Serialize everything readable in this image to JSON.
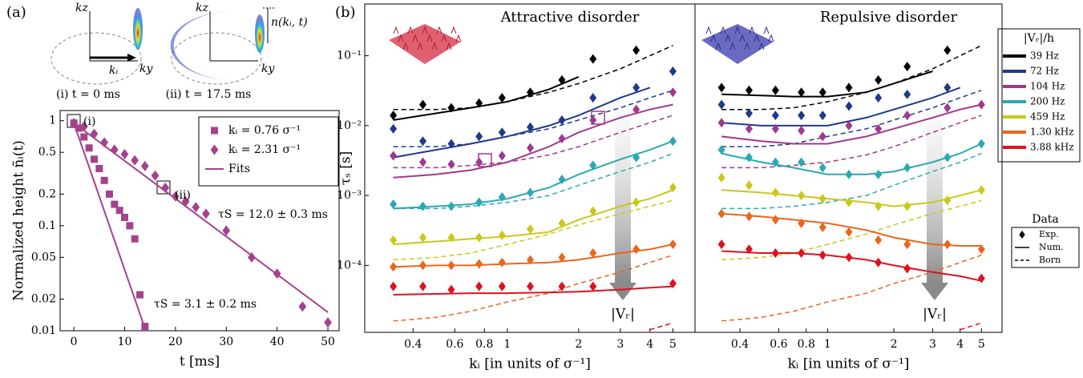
{
  "chart_data": [
    {
      "type": "line",
      "panel_label": "(a)",
      "log_y": true,
      "xlabel": "t [ms]",
      "ylabel": "Normalized height ñᵢ(t)",
      "xlim": [
        -2.7,
        52.2
      ],
      "xticks": [
        0,
        10,
        20,
        30,
        40,
        50
      ],
      "ylim": [
        0.01,
        1.25
      ],
      "yticks": [
        1,
        0.5,
        0.2,
        0.1,
        0.05,
        0.02,
        0.01
      ],
      "series": [
        {
          "name": "kᵢ = 0.76 σ⁻¹",
          "color": "#a4428e",
          "marker": "square",
          "x": [
            0,
            1,
            2,
            3,
            4,
            5,
            6,
            7,
            8,
            9,
            10,
            11,
            12,
            13,
            14
          ],
          "values": [
            0.95,
            0.85,
            0.7,
            0.55,
            0.43,
            0.35,
            0.27,
            0.2,
            0.16,
            0.14,
            0.12,
            0.1,
            0.075,
            0.022,
            0.011
          ]
        },
        {
          "name": "kᵢ = 2.31 σ⁻¹",
          "color": "#a4428e",
          "marker": "diamond",
          "x": [
            0,
            2,
            4,
            6,
            8,
            10,
            12,
            14,
            16,
            18,
            20,
            22,
            24,
            26,
            30,
            35,
            40,
            45,
            50
          ],
          "values": [
            0.95,
            0.88,
            0.75,
            0.62,
            0.53,
            0.48,
            0.42,
            0.37,
            0.3,
            0.23,
            0.19,
            0.17,
            0.15,
            0.13,
            0.09,
            0.05,
            0.035,
            0.017,
            0.012
          ]
        }
      ],
      "fits": {
        "name": "Fits",
        "color": "#a4428e",
        "lines": [
          {
            "x": [
              0,
              14
            ],
            "values": [
              0.95,
              0.0105
            ]
          },
          {
            "x": [
              0,
              50
            ],
            "values": [
              0.95,
              0.015
            ]
          }
        ]
      },
      "annotations": [
        "(i)",
        "(ii)",
        "τS = 12.0 ± 0.3 ms",
        "τS = 3.1 ± 0.2 ms"
      ],
      "insets": [
        {
          "caption": "(i) t = 0 ms",
          "axis_labels": [
            "kz",
            "ky",
            "kᵢ"
          ]
        },
        {
          "caption": "(ii) t = 17.5 ms",
          "axis_labels": [
            "kz",
            "ky",
            "n(kᵢ, t)"
          ]
        }
      ]
    },
    {
      "type": "line",
      "panel_label": "(b)",
      "log_x": true,
      "log_y": true,
      "title": "Attractive disorder",
      "title_color": "#e8141e",
      "xlabel": "kᵢ [in units of σ⁻¹]",
      "ylabel": "τₛ [s]",
      "xlim": [
        0.25,
        6.2
      ],
      "xticks": [
        0.4,
        0.6,
        0.8,
        1,
        2,
        3,
        4,
        5
      ],
      "ylim": [
        1.1e-05,
        0.55
      ],
      "yticks": [
        {
          "value": 0.1,
          "label": "10⁻¹"
        },
        {
          "value": 0.01,
          "label": "10⁻²"
        },
        {
          "value": 0.001,
          "label": "10⁻³"
        },
        {
          "value": 0.0001,
          "label": "10⁻⁴"
        }
      ],
      "arrow_label": "|Vᵣ|",
      "legend_title": "|Vᵣ|/h",
      "data_legend": {
        "title": "Data",
        "entries": [
          "Exp.",
          "Num.",
          "Born"
        ]
      },
      "x": [
        0.33,
        0.44,
        0.58,
        0.76,
        0.95,
        1.25,
        1.7,
        2.3,
        3.5,
        5
      ],
      "model_x": [
        0.33,
        0.5,
        0.7,
        1,
        1.5,
        2,
        3,
        4,
        5
      ],
      "series": [
        {
          "name": "39 Hz",
          "color": "#000000",
          "values": [
            0.014,
            0.02,
            0.018,
            0.021,
            0.025,
            0.03,
            0.045,
            0.09,
            0.12,
            null
          ],
          "num": [
            0.012,
            0.015,
            0.018,
            0.022,
            0.033,
            0.05,
            null,
            null,
            null
          ],
          "born": [
            0.017,
            0.017,
            0.018,
            0.022,
            0.03,
            0.04,
            0.065,
            0.1,
            0.14
          ]
        },
        {
          "name": "72 Hz",
          "color": "#1f3a8a",
          "values": [
            0.009,
            0.006,
            0.0055,
            0.007,
            0.008,
            0.0095,
            0.012,
            0.025,
            0.035,
            0.06
          ],
          "num": [
            0.0035,
            0.0045,
            0.0055,
            0.007,
            0.01,
            0.014,
            0.025,
            0.035,
            null
          ],
          "born": [
            0.005,
            0.005,
            0.0055,
            0.007,
            0.009,
            0.012,
            0.018,
            0.025,
            0.032
          ]
        },
        {
          "name": "104 Hz",
          "color": "#a0388f",
          "values": [
            0.0037,
            0.003,
            0.0028,
            0.003,
            0.0037,
            0.0048,
            0.0065,
            0.012,
            0.017,
            0.03
          ],
          "num": [
            0.0018,
            0.002,
            0.0023,
            0.003,
            0.005,
            0.008,
            0.013,
            0.017,
            0.02
          ],
          "born": [
            0.0025,
            0.0025,
            0.0027,
            0.003,
            0.0038,
            0.005,
            0.008,
            0.011,
            0.014
          ]
        },
        {
          "name": "200 Hz",
          "color": "#2aa8b5",
          "values": [
            0.00075,
            0.0007,
            0.0007,
            0.0008,
            0.00095,
            0.0011,
            0.0017,
            0.0027,
            0.0035,
            0.006
          ],
          "num": [
            0.00065,
            0.0007,
            0.00075,
            0.0009,
            0.0013,
            0.002,
            0.0033,
            0.0045,
            0.006
          ],
          "born": [
            0.00065,
            0.00065,
            0.0007,
            0.0008,
            0.001,
            0.0014,
            0.0022,
            0.003,
            0.004
          ]
        },
        {
          "name": "459 Hz",
          "color": "#c9c81a",
          "values": [
            0.00023,
            0.00025,
            0.00025,
            0.00025,
            0.00027,
            0.00033,
            0.0004,
            0.0006,
            0.0008,
            0.0013
          ],
          "num": [
            0.0002,
            0.00022,
            0.00024,
            0.00026,
            0.0003,
            0.00045,
            0.0007,
            0.0009,
            0.0012
          ],
          "born": [
            0.00012,
            0.00013,
            0.00015,
            0.0002,
            0.00028,
            0.00038,
            0.00055,
            0.0007,
            0.00085
          ]
        },
        {
          "name": "1.30 kHz",
          "color": "#e8661e",
          "values": [
            9.5e-05,
            0.0001,
            0.0001,
            0.000105,
            0.00011,
            0.00012,
            0.00013,
            0.00015,
            0.00017,
            0.0002
          ],
          "num": [
            9.5e-05,
            0.0001,
            0.0001,
            0.000105,
            0.00011,
            0.00012,
            0.00015,
            0.00017,
            0.0002
          ],
          "born": [
            1.6e-05,
            1.8e-05,
            2.2e-05,
            3e-05,
            4e-05,
            5.5e-05,
            8e-05,
            0.00011,
            0.00014
          ]
        },
        {
          "name": "3.88 kHz",
          "color": "#e01020",
          "values": [
            5e-05,
            5e-05,
            4.5e-05,
            5e-05,
            5e-05,
            5e-05,
            5e-05,
            5e-05,
            null,
            5.5e-05
          ],
          "num": [
            3.8e-05,
            3.9e-05,
            4e-05,
            4e-05,
            4.1e-05,
            4.2e-05,
            4.5e-05,
            4.8e-05,
            5e-05
          ],
          "born": [
            null,
            null,
            null,
            null,
            null,
            null,
            null,
            1.2e-05,
            1.5e-05
          ]
        }
      ]
    },
    {
      "type": "line",
      "log_x": true,
      "log_y": true,
      "title": "Repulsive disorder",
      "title_color": "#4a4aa8",
      "xlabel": "kᵢ [in units of σ⁻¹]",
      "xlim": [
        0.25,
        6.2
      ],
      "xticks": [
        0.4,
        0.6,
        0.8,
        1,
        2,
        3,
        4,
        5
      ],
      "ylim": [
        1.1e-05,
        0.55
      ],
      "arrow_label": "|Vᵣ|",
      "x": [
        0.33,
        0.44,
        0.58,
        0.76,
        0.95,
        1.25,
        1.7,
        2.3,
        3.5,
        5
      ],
      "model_x": [
        0.33,
        0.5,
        0.7,
        1,
        1.5,
        2,
        3,
        4,
        5
      ],
      "series": [
        {
          "color": "#000000",
          "values": [
            0.035,
            0.032,
            0.032,
            0.03,
            0.03,
            0.035,
            0.045,
            0.07,
            0.12,
            null
          ],
          "num": [
            0.028,
            0.027,
            0.026,
            0.026,
            0.03,
            0.04,
            0.06,
            null,
            null
          ],
          "born": [
            0.017,
            0.017,
            0.018,
            0.022,
            0.03,
            0.04,
            0.065,
            0.1,
            0.14
          ]
        },
        {
          "color": "#1f3a8a",
          "values": [
            0.02,
            0.015,
            0.014,
            0.014,
            0.014,
            0.019,
            0.025,
            0.028,
            0.035,
            null
          ],
          "num": [
            0.011,
            0.01,
            0.01,
            0.01,
            0.013,
            0.017,
            0.025,
            0.035,
            null
          ],
          "born": [
            0.005,
            0.005,
            0.0055,
            0.007,
            0.009,
            0.012,
            0.018,
            0.025,
            0.032
          ]
        },
        {
          "color": "#a0388f",
          "values": [
            0.011,
            0.009,
            0.009,
            0.0085,
            0.007,
            0.01,
            0.009,
            0.014,
            0.018,
            0.02
          ],
          "num": [
            0.007,
            0.006,
            0.0055,
            0.0055,
            0.007,
            0.009,
            0.013,
            0.017,
            0.02
          ],
          "born": [
            0.0025,
            0.0025,
            0.0027,
            0.003,
            0.0038,
            0.005,
            0.008,
            0.011,
            0.014
          ]
        },
        {
          "color": "#2aa8b5",
          "values": [
            0.0045,
            0.0035,
            0.003,
            0.003,
            0.0025,
            0.002,
            0.002,
            0.0025,
            0.0035,
            0.0055
          ],
          "num": [
            0.004,
            0.003,
            0.0025,
            0.002,
            0.002,
            0.0022,
            0.003,
            0.004,
            0.0055
          ],
          "born": [
            0.00065,
            0.00065,
            0.0007,
            0.0008,
            0.001,
            0.0014,
            0.0022,
            0.003,
            0.004
          ]
        },
        {
          "color": "#c9c81a",
          "values": [
            0.0018,
            0.0014,
            0.0011,
            0.001,
            0.0009,
            0.0008,
            0.0007,
            0.0007,
            0.00085,
            0.0012
          ],
          "num": [
            0.0012,
            0.0011,
            0.001,
            0.0009,
            0.0008,
            0.0007,
            0.0008,
            0.001,
            0.0012
          ],
          "born": [
            0.00012,
            0.00013,
            0.00015,
            0.0002,
            0.00028,
            0.00038,
            0.00055,
            0.0007,
            0.00085
          ]
        },
        {
          "color": "#e8661e",
          "values": [
            0.00055,
            0.0005,
            0.00045,
            0.0004,
            0.00035,
            0.0003,
            0.00023,
            0.0002,
            0.0002,
            0.00017
          ],
          "num": [
            0.00055,
            0.0005,
            0.00045,
            0.0004,
            0.00032,
            0.00025,
            0.0002,
            0.00019,
            0.00019
          ],
          "born": [
            1.6e-05,
            1.8e-05,
            2.2e-05,
            3e-05,
            4e-05,
            5.5e-05,
            8e-05,
            0.00011,
            0.00014
          ]
        },
        {
          "color": "#e01020",
          "values": [
            0.0002,
            0.00017,
            0.00015,
            0.00015,
            0.00014,
            0.00013,
            0.00011,
            9e-05,
            null,
            6.5e-05
          ],
          "num": [
            0.00016,
            0.00015,
            0.00015,
            0.00014,
            0.00012,
            0.0001,
            8e-05,
            7e-05,
            6e-05
          ],
          "born": [
            null,
            null,
            null,
            null,
            null,
            null,
            null,
            1.2e-05,
            1.5e-05
          ]
        }
      ]
    }
  ]
}
